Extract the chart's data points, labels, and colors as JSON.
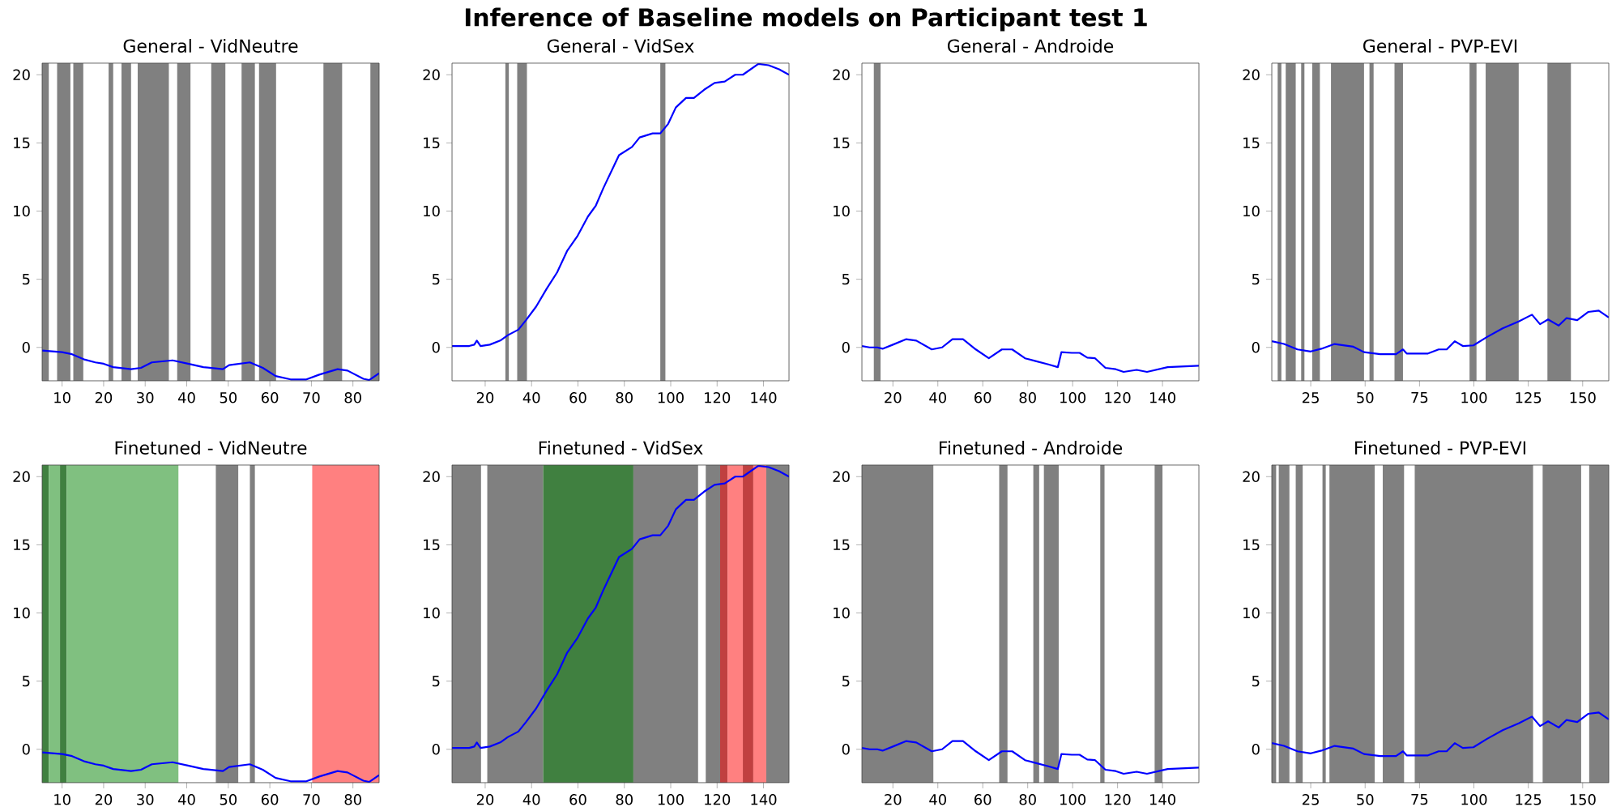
{
  "chart_data": [
    {
      "type": "other",
      "title": "Inference of Baseline models on Participant test 1"
    },
    {
      "type": "line",
      "title": "General - VidNeutre",
      "xlim": [
        5.2,
        86.3
      ],
      "xticks": [
        10,
        20,
        30,
        40,
        50,
        60,
        70,
        80
      ],
      "ylim": [
        -2.45,
        20.85
      ],
      "yticks": [
        0,
        5,
        10,
        15,
        20
      ],
      "series": [
        {
          "color": "#0000ff",
          "x": [
            5.2,
            10,
            12.4,
            15.5,
            18,
            20,
            22.3,
            26.6,
            29,
            31.6,
            36.6,
            40.3,
            44,
            48.7,
            50.2,
            55.2,
            58.3,
            61.4,
            65,
            68.8,
            71.9,
            76.3,
            78.7,
            82.5,
            83.9,
            86.3
          ],
          "values": [
            -0.23,
            -0.35,
            -0.5,
            -0.9,
            -1.1,
            -1.2,
            -1.45,
            -1.6,
            -1.5,
            -1.1,
            -0.95,
            -1.2,
            -1.45,
            -1.6,
            -1.3,
            -1.1,
            -1.5,
            -2.1,
            -2.35,
            -2.35,
            -2.0,
            -1.6,
            -1.7,
            -2.3,
            -2.4,
            -1.9
          ]
        }
      ],
      "bands": [
        {
          "axis": "x",
          "from": 5.2,
          "to": 6.8,
          "color": "#808080"
        },
        {
          "axis": "x",
          "from": 8.8,
          "to": 12.0,
          "color": "#808080"
        },
        {
          "axis": "x",
          "from": 12.7,
          "to": 15.1,
          "color": "#808080"
        },
        {
          "axis": "x",
          "from": 21.2,
          "to": 22.3,
          "color": "#808080"
        },
        {
          "axis": "x",
          "from": 24.3,
          "to": 26.6,
          "color": "#808080"
        },
        {
          "axis": "x",
          "from": 28.2,
          "to": 35.7,
          "color": "#808080"
        },
        {
          "axis": "x",
          "from": 37.7,
          "to": 40.9,
          "color": "#808080"
        },
        {
          "axis": "x",
          "from": 45.9,
          "to": 49.3,
          "color": "#808080"
        },
        {
          "axis": "x",
          "from": 53.2,
          "to": 56.4,
          "color": "#808080"
        },
        {
          "axis": "x",
          "from": 57.4,
          "to": 61.5,
          "color": "#808080"
        },
        {
          "axis": "x",
          "from": 72.9,
          "to": 77.4,
          "color": "#808080"
        },
        {
          "axis": "x",
          "from": 84.2,
          "to": 86.3,
          "color": "#808080"
        }
      ]
    },
    {
      "type": "line",
      "title": "General - VidSex",
      "xlim": [
        5.7,
        151
      ],
      "xticks": [
        20,
        40,
        60,
        80,
        100,
        120,
        140
      ],
      "ylim": [
        -2.45,
        20.85
      ],
      "yticks": [
        0,
        5,
        10,
        15,
        20
      ],
      "series": [
        {
          "color": "#0000ff",
          "x": [
            5.7,
            13.1,
            15.3,
            16.4,
            18,
            22,
            26.5,
            29.8,
            34.3,
            37.6,
            42,
            46.5,
            51,
            55.4,
            59.9,
            64.3,
            67.7,
            71,
            77.7,
            83.3,
            86.6,
            92.2,
            95.5,
            98.9,
            102.2,
            106.6,
            110,
            114.4,
            118.9,
            123.3,
            127.8,
            131.1,
            137.8,
            142.2,
            146.7,
            151
          ],
          "values": [
            0.1,
            0.1,
            0.2,
            0.5,
            0.1,
            0.2,
            0.5,
            0.9,
            1.3,
            2.0,
            3.0,
            4.3,
            5.5,
            7.1,
            8.2,
            9.6,
            10.4,
            11.7,
            14.1,
            14.7,
            15.4,
            15.7,
            15.7,
            16.4,
            17.6,
            18.3,
            18.3,
            18.9,
            19.4,
            19.5,
            20.0,
            20.0,
            20.8,
            20.7,
            20.4,
            20.0
          ]
        }
      ],
      "bands": [
        {
          "axis": "x",
          "from": 28.7,
          "to": 30.2,
          "color": "#808080"
        },
        {
          "axis": "x",
          "from": 33.8,
          "to": 38.0,
          "color": "#808080"
        },
        {
          "axis": "x",
          "from": 95.5,
          "to": 97.7,
          "color": "#808080"
        }
      ]
    },
    {
      "type": "line",
      "title": "General - Androide",
      "xlim": [
        6.2,
        156.2
      ],
      "xticks": [
        20,
        40,
        60,
        80,
        100,
        120,
        140
      ],
      "ylim": [
        -2.45,
        20.85
      ],
      "yticks": [
        0,
        5,
        10,
        15,
        20
      ],
      "series": [
        {
          "color": "#0000ff",
          "x": [
            6.2,
            9.6,
            13,
            15.4,
            20,
            25.8,
            30.4,
            37.3,
            41.9,
            46.5,
            51.2,
            56.9,
            62.7,
            68.5,
            73.1,
            78.8,
            83.5,
            89.2,
            93.4,
            95,
            99.6,
            103.1,
            106.5,
            110,
            114.6,
            119.2,
            122.7,
            128.5,
            133.1,
            142.3,
            156.2
          ],
          "values": [
            0.1,
            0,
            0,
            -0.1,
            0.2,
            0.6,
            0.5,
            -0.15,
            0,
            0.6,
            0.6,
            -0.15,
            -0.8,
            -0.15,
            -0.15,
            -0.8,
            -1.0,
            -1.25,
            -1.45,
            -0.35,
            -0.4,
            -0.4,
            -0.75,
            -0.8,
            -1.5,
            -1.6,
            -1.8,
            -1.65,
            -1.8,
            -1.45,
            -1.35
          ]
        }
      ],
      "bands": [
        {
          "axis": "x",
          "from": 11.5,
          "to": 14.5,
          "color": "#808080"
        }
      ]
    },
    {
      "type": "line",
      "title": "General - PVP-EVI",
      "xlim": [
        7.1,
        162
      ],
      "xticks": [
        25,
        50,
        75,
        100,
        125,
        150
      ],
      "ylim": [
        -2.45,
        20.85
      ],
      "yticks": [
        0,
        5,
        10,
        15,
        20
      ],
      "series": [
        {
          "color": "#0000ff",
          "x": [
            7.1,
            12.7,
            18.9,
            25,
            29.9,
            36,
            44.6,
            49.5,
            56.9,
            64.2,
            67.4,
            69.1,
            78.9,
            83.8,
            87.5,
            91.2,
            94.9,
            99.8,
            105.9,
            113.2,
            120.6,
            126.7,
            130.4,
            134.1,
            139,
            142.6,
            147.5,
            152.5,
            157.4,
            162
          ],
          "values": [
            0.45,
            0.25,
            -0.15,
            -0.3,
            -0.1,
            0.25,
            0.05,
            -0.35,
            -0.5,
            -0.5,
            -0.15,
            -0.45,
            -0.45,
            -0.15,
            -0.15,
            0.45,
            0.1,
            0.15,
            0.75,
            1.4,
            1.9,
            2.4,
            1.7,
            2.05,
            1.6,
            2.15,
            2.0,
            2.6,
            2.7,
            2.2
          ]
        }
      ],
      "bands": [
        {
          "axis": "x",
          "from": 9.8,
          "to": 11.5,
          "color": "#808080"
        },
        {
          "axis": "x",
          "from": 13.5,
          "to": 18.1,
          "color": "#808080"
        },
        {
          "axis": "x",
          "from": 20.6,
          "to": 22.1,
          "color": "#808080"
        },
        {
          "axis": "x",
          "from": 25.7,
          "to": 29.2,
          "color": "#808080"
        },
        {
          "axis": "x",
          "from": 34.3,
          "to": 49.5,
          "color": "#808080"
        },
        {
          "axis": "x",
          "from": 52.0,
          "to": 53.9,
          "color": "#808080"
        },
        {
          "axis": "x",
          "from": 63.5,
          "to": 67.4,
          "color": "#808080"
        },
        {
          "axis": "x",
          "from": 98.0,
          "to": 101.2,
          "color": "#808080"
        },
        {
          "axis": "x",
          "from": 105.4,
          "to": 120.6,
          "color": "#808080"
        },
        {
          "axis": "x",
          "from": 133.8,
          "to": 144.6,
          "color": "#808080"
        }
      ]
    },
    {
      "type": "line",
      "title": "Finetuned - VidNeutre",
      "xlim": [
        5.2,
        86.3
      ],
      "xticks": [
        10,
        20,
        30,
        40,
        50,
        60,
        70,
        80
      ],
      "ylim": [
        -2.45,
        20.85
      ],
      "yticks": [
        0,
        5,
        10,
        15,
        20
      ],
      "series": [
        {
          "color": "#0000ff",
          "x": [
            5.2,
            10,
            12.4,
            15.5,
            18,
            20,
            22.3,
            26.6,
            29,
            31.6,
            36.6,
            40.3,
            44,
            48.7,
            50.2,
            55.2,
            58.3,
            61.4,
            65,
            68.8,
            71.9,
            76.3,
            78.7,
            82.5,
            83.9,
            86.3
          ],
          "values": [
            -0.23,
            -0.35,
            -0.5,
            -0.9,
            -1.1,
            -1.2,
            -1.45,
            -1.6,
            -1.5,
            -1.1,
            -0.95,
            -1.2,
            -1.45,
            -1.6,
            -1.3,
            -1.1,
            -1.5,
            -2.1,
            -2.35,
            -2.35,
            -2.0,
            -1.6,
            -1.7,
            -2.3,
            -2.4,
            -1.9
          ]
        }
      ],
      "bands": [
        {
          "axis": "x",
          "from": 5.2,
          "to": 6.8,
          "color": "#408040"
        },
        {
          "axis": "x",
          "from": 6.8,
          "to": 9.5,
          "color": "#80c080"
        },
        {
          "axis": "x",
          "from": 9.5,
          "to": 11.1,
          "color": "#408040"
        },
        {
          "axis": "x",
          "from": 11.1,
          "to": 38.0,
          "color": "#80c080"
        },
        {
          "axis": "x",
          "from": 47.0,
          "to": 52.4,
          "color": "#808080"
        },
        {
          "axis": "x",
          "from": 55.2,
          "to": 56.4,
          "color": "#808080"
        },
        {
          "axis": "x",
          "from": 70.2,
          "to": 86.3,
          "color": "#ff8080"
        }
      ]
    },
    {
      "type": "line",
      "title": "Finetuned - VidSex",
      "xlim": [
        5.7,
        151
      ],
      "xticks": [
        20,
        40,
        60,
        80,
        100,
        120,
        140
      ],
      "ylim": [
        -2.45,
        20.85
      ],
      "yticks": [
        0,
        5,
        10,
        15,
        20
      ],
      "series": [
        {
          "color": "#0000ff",
          "x": [
            5.7,
            13.1,
            15.3,
            16.4,
            18,
            22,
            26.5,
            29.8,
            34.3,
            37.6,
            42,
            46.5,
            51,
            55.4,
            59.9,
            64.3,
            67.7,
            71,
            77.7,
            83.3,
            86.6,
            92.2,
            95.5,
            98.9,
            102.2,
            106.6,
            110,
            114.4,
            118.9,
            123.3,
            127.8,
            131.1,
            137.8,
            142.2,
            146.7,
            151
          ],
          "values": [
            0.1,
            0.1,
            0.2,
            0.5,
            0.1,
            0.2,
            0.5,
            0.9,
            1.3,
            2.0,
            3.0,
            4.3,
            5.5,
            7.1,
            8.2,
            9.6,
            10.4,
            11.7,
            14.1,
            14.7,
            15.4,
            15.7,
            15.7,
            16.4,
            17.6,
            18.3,
            18.3,
            18.9,
            19.4,
            19.5,
            20.0,
            20.0,
            20.8,
            20.7,
            20.4,
            20.0
          ]
        }
      ],
      "bands": [
        {
          "axis": "x",
          "from": 5.7,
          "to": 18.2,
          "color": "#808080"
        },
        {
          "axis": "x",
          "from": 20.9,
          "to": 45.0,
          "color": "#808080"
        },
        {
          "axis": "x",
          "from": 45.0,
          "to": 83.9,
          "color": "#408040"
        },
        {
          "axis": "x",
          "from": 83.9,
          "to": 111.8,
          "color": "#808080"
        },
        {
          "axis": "x",
          "from": 115.1,
          "to": 121.3,
          "color": "#808080"
        },
        {
          "axis": "x",
          "from": 121.3,
          "to": 124.5,
          "color": "#c04040"
        },
        {
          "axis": "x",
          "from": 124.5,
          "to": 131.1,
          "color": "#ff8080"
        },
        {
          "axis": "x",
          "from": 131.1,
          "to": 135.6,
          "color": "#c04040"
        },
        {
          "axis": "x",
          "from": 135.6,
          "to": 141.2,
          "color": "#ff8080"
        },
        {
          "axis": "x",
          "from": 141.2,
          "to": 151,
          "color": "#808080"
        }
      ]
    },
    {
      "type": "line",
      "title": "Finetuned - Androide",
      "xlim": [
        6.2,
        156.2
      ],
      "xticks": [
        20,
        40,
        60,
        80,
        100,
        120,
        140
      ],
      "ylim": [
        -2.45,
        20.85
      ],
      "yticks": [
        0,
        5,
        10,
        15,
        20
      ],
      "series": [
        {
          "color": "#0000ff",
          "x": [
            6.2,
            9.6,
            13,
            15.4,
            20,
            25.8,
            30.4,
            37.3,
            41.9,
            46.5,
            51.2,
            56.9,
            62.7,
            68.5,
            73.1,
            78.8,
            83.5,
            89.2,
            93.4,
            95,
            99.6,
            103.1,
            106.5,
            110,
            114.6,
            119.2,
            122.7,
            128.5,
            133.1,
            142.3,
            156.2
          ],
          "values": [
            0.1,
            0,
            0,
            -0.1,
            0.2,
            0.6,
            0.5,
            -0.15,
            0,
            0.6,
            0.6,
            -0.15,
            -0.8,
            -0.15,
            -0.15,
            -0.8,
            -1.0,
            -1.25,
            -1.45,
            -0.35,
            -0.4,
            -0.4,
            -0.75,
            -0.8,
            -1.5,
            -1.6,
            -1.8,
            -1.65,
            -1.8,
            -1.45,
            -1.35
          ]
        }
      ],
      "bands": [
        {
          "axis": "x",
          "from": 6.2,
          "to": 38.0,
          "color": "#808080"
        },
        {
          "axis": "x",
          "from": 67.3,
          "to": 71.0,
          "color": "#808080"
        },
        {
          "axis": "x",
          "from": 82.5,
          "to": 85.1,
          "color": "#808080"
        },
        {
          "axis": "x",
          "from": 87.2,
          "to": 93.8,
          "color": "#808080"
        },
        {
          "axis": "x",
          "from": 112.3,
          "to": 114.2,
          "color": "#808080"
        },
        {
          "axis": "x",
          "from": 136.5,
          "to": 140.0,
          "color": "#808080"
        }
      ]
    },
    {
      "type": "line",
      "title": "Finetuned - PVP-EVI",
      "xlim": [
        7.1,
        162
      ],
      "xticks": [
        25,
        50,
        75,
        100,
        125,
        150
      ],
      "ylim": [
        -2.45,
        20.85
      ],
      "yticks": [
        0,
        5,
        10,
        15,
        20
      ],
      "series": [
        {
          "color": "#0000ff",
          "x": [
            7.1,
            12.7,
            18.9,
            25,
            29.9,
            36,
            44.6,
            49.5,
            56.9,
            64.2,
            67.4,
            69.1,
            78.9,
            83.8,
            87.5,
            91.2,
            94.9,
            99.8,
            105.9,
            113.2,
            120.6,
            126.7,
            130.4,
            134.1,
            139,
            142.6,
            147.5,
            152.5,
            157.4,
            162
          ],
          "values": [
            0.45,
            0.25,
            -0.15,
            -0.3,
            -0.1,
            0.25,
            0.05,
            -0.35,
            -0.5,
            -0.5,
            -0.15,
            -0.45,
            -0.45,
            -0.15,
            -0.15,
            0.45,
            0.1,
            0.15,
            0.75,
            1.4,
            1.9,
            2.4,
            1.7,
            2.05,
            1.6,
            2.15,
            2.0,
            2.6,
            2.7,
            2.2
          ]
        }
      ],
      "bands": [
        {
          "axis": "x",
          "from": 7.1,
          "to": 9.1,
          "color": "#808080"
        },
        {
          "axis": "x",
          "from": 10.3,
          "to": 15.2,
          "color": "#808080"
        },
        {
          "axis": "x",
          "from": 18.1,
          "to": 21.3,
          "color": "#808080"
        },
        {
          "axis": "x",
          "from": 30.4,
          "to": 31.9,
          "color": "#808080"
        },
        {
          "axis": "x",
          "from": 33.6,
          "to": 54.4,
          "color": "#808080"
        },
        {
          "axis": "x",
          "from": 58.1,
          "to": 67.9,
          "color": "#808080"
        },
        {
          "axis": "x",
          "from": 72.8,
          "to": 127.2,
          "color": "#808080"
        },
        {
          "axis": "x",
          "from": 131.6,
          "to": 149.3,
          "color": "#808080"
        },
        {
          "axis": "x",
          "from": 153.0,
          "to": 162,
          "color": "#808080"
        }
      ]
    }
  ]
}
